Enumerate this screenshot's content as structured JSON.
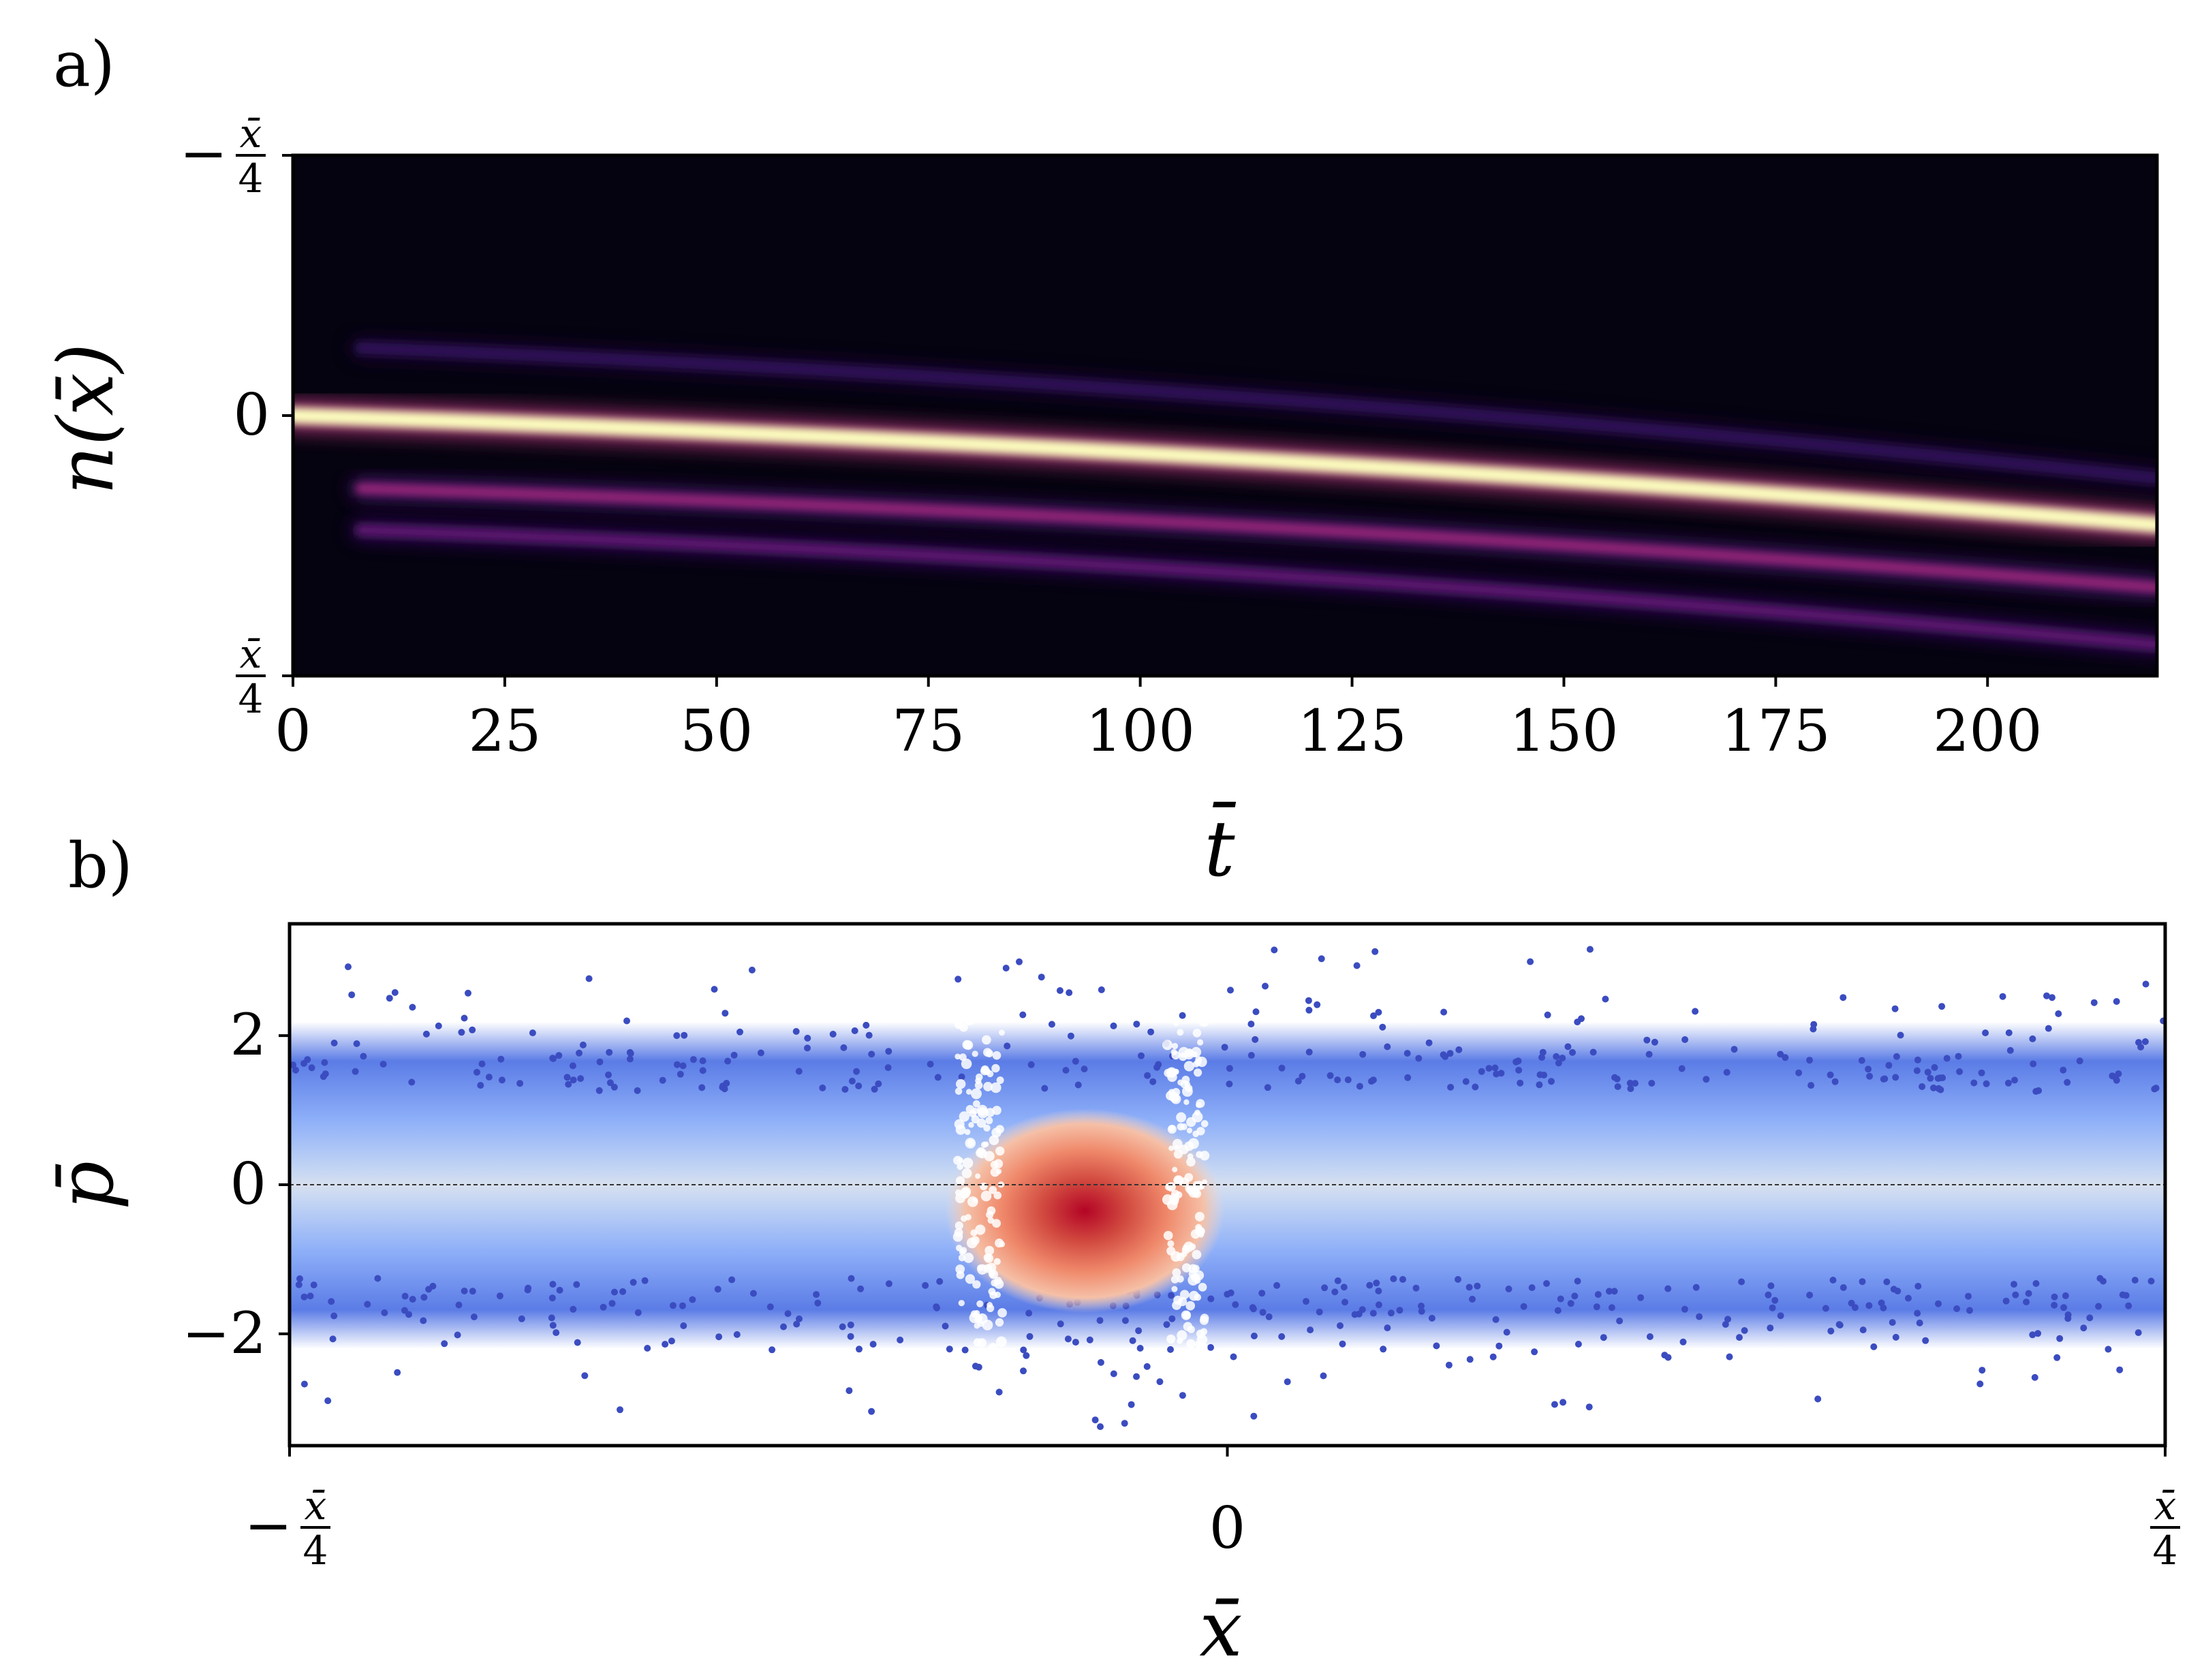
{
  "panels": {
    "a": {
      "letter": "a)"
    },
    "b": {
      "letter": "b)"
    }
  },
  "chart_data": [
    {
      "id": "a",
      "type": "heatmap",
      "ylabel": "n(x̄)",
      "xlabel": "t̄",
      "xlim": [
        0,
        220
      ],
      "x_ticks": [
        0,
        25,
        50,
        75,
        100,
        125,
        150,
        175,
        200
      ],
      "y_ticks": [
        {
          "value": -0.25,
          "label": "−x̄/4",
          "sign": "−",
          "numerator": "x̄",
          "denominator": "4"
        },
        {
          "value": 0,
          "label": "0"
        },
        {
          "value": 0.25,
          "label": "x̄/4",
          "sign": "",
          "numerator": "x̄",
          "denominator": "4"
        }
      ],
      "colormap": "magma",
      "tracks": [
        {
          "name": "main",
          "intensity": 1.0,
          "y_start": 0.0,
          "y_end": 0.105
        },
        {
          "name": "upper-1",
          "intensity": 0.5,
          "y_start": 0.07,
          "y_end": 0.165
        },
        {
          "name": "upper-2",
          "intensity": 0.35,
          "y_start": 0.11,
          "y_end": 0.22
        },
        {
          "name": "lower",
          "intensity": 0.2,
          "y_start": -0.065,
          "y_end": 0.06
        }
      ]
    },
    {
      "id": "b",
      "type": "scatter",
      "ylabel": "p̄",
      "xlabel": "x̄",
      "ylim": [
        -3.5,
        3.5
      ],
      "x_ticks": [
        {
          "value": -0.25,
          "label": "−x̄/4",
          "sign": "−",
          "numerator": "x̄",
          "denominator": "4"
        },
        {
          "value": 0,
          "label": "0"
        },
        {
          "value": 0.25,
          "label": "x̄/4",
          "sign": "",
          "numerator": "x̄",
          "denominator": "4"
        }
      ],
      "y_ticks": [
        -2,
        0,
        2
      ],
      "reference_line_y": 0,
      "colormap": "coolwarm",
      "dense_cluster_center": {
        "x": -0.038,
        "p": -0.35
      },
      "colors": {
        "low": "#3b4cc0",
        "mid": "#dddddd",
        "high": "#b40426"
      }
    }
  ]
}
